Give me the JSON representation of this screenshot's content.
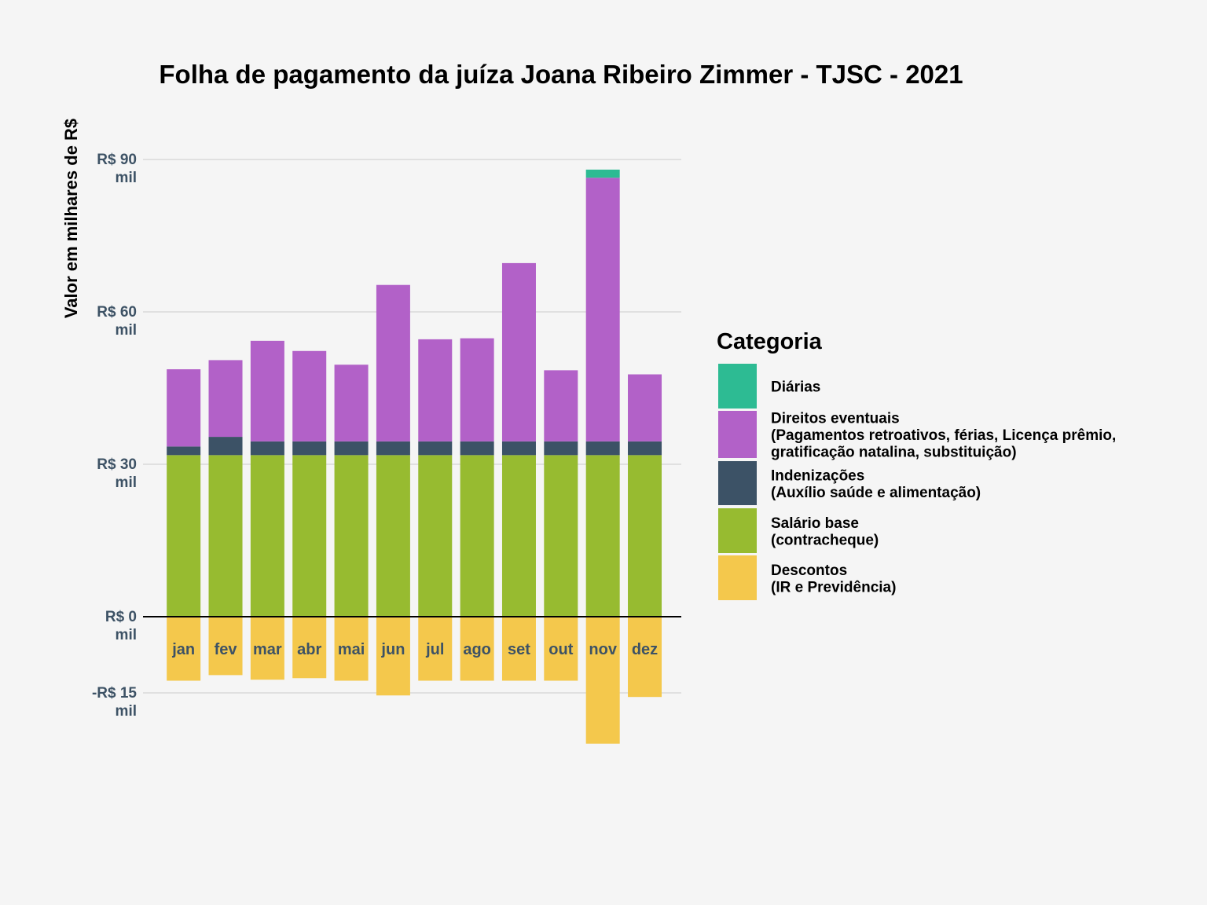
{
  "chart_data": {
    "type": "bar",
    "stacked": true,
    "title": "Folha de pagamento da juíza Joana Ribeiro Zimmer - TJSC - 2021",
    "ylabel": "Valor em milhares de R$",
    "xlabel": "",
    "ylim": [
      -27,
      102
    ],
    "grid": true,
    "categories": [
      "jan",
      "fev",
      "mar",
      "abr",
      "mai",
      "jun",
      "jul",
      "ago",
      "set",
      "out",
      "nov",
      "dez"
    ],
    "y_ticks": [
      {
        "value": 90,
        "line1": "R$ 90",
        "line2": "mil"
      },
      {
        "value": 60,
        "line1": "R$ 60",
        "line2": "mil"
      },
      {
        "value": 30,
        "line1": "R$ 30",
        "line2": "mil"
      },
      {
        "value": 0,
        "line1": "R$ 0",
        "line2": "mil"
      },
      {
        "value": -15,
        "line1": "-R$ 15",
        "line2": "mil"
      }
    ],
    "series": [
      {
        "key": "salario",
        "color": "#97bb30",
        "values": [
          31.8,
          31.8,
          31.8,
          31.8,
          31.8,
          31.8,
          31.8,
          31.8,
          31.8,
          31.8,
          31.8,
          31.8
        ]
      },
      {
        "key": "indenizacoes",
        "color": "#3c5266",
        "values": [
          1.7,
          3.6,
          2.7,
          2.7,
          2.7,
          2.7,
          2.7,
          2.7,
          2.7,
          2.7,
          2.7,
          2.7
        ]
      },
      {
        "key": "direitos",
        "color": "#b261c8",
        "values": [
          15.2,
          15.1,
          19.8,
          17.8,
          15.1,
          30.8,
          20.1,
          20.3,
          35.1,
          14.0,
          51.9,
          13.2
        ]
      },
      {
        "key": "diarias",
        "color": "#2dbb93",
        "values": [
          0,
          0,
          0,
          0,
          0,
          0,
          0,
          0,
          0,
          0,
          1.6,
          0
        ]
      },
      {
        "key": "descontos",
        "color": "#f4c84c",
        "values": [
          -12.6,
          -11.5,
          -12.4,
          -12.1,
          -12.6,
          -15.5,
          -12.6,
          -12.6,
          -12.6,
          -12.6,
          -25.0,
          -15.8
        ]
      }
    ],
    "legend": {
      "title": "Categoria",
      "placement": "right",
      "items": [
        {
          "key": "diarias",
          "color": "#2dbb93",
          "lines": [
            "Diárias"
          ]
        },
        {
          "key": "direitos",
          "color": "#b261c8",
          "lines": [
            "Direitos eventuais",
            "(Pagamentos retroativos, férias, Licença prêmio,",
            "gratificação natalina, substituição)"
          ]
        },
        {
          "key": "indenizacoes",
          "color": "#3c5266",
          "lines": [
            "Indenizações",
            "(Auxílio saúde e alimentação)"
          ]
        },
        {
          "key": "salario",
          "color": "#97bb30",
          "lines": [
            "Salário base",
            "(contracheque)"
          ]
        },
        {
          "key": "descontos",
          "color": "#f4c84c",
          "lines": [
            "Descontos",
            "(IR e Previdência)"
          ]
        }
      ]
    }
  }
}
